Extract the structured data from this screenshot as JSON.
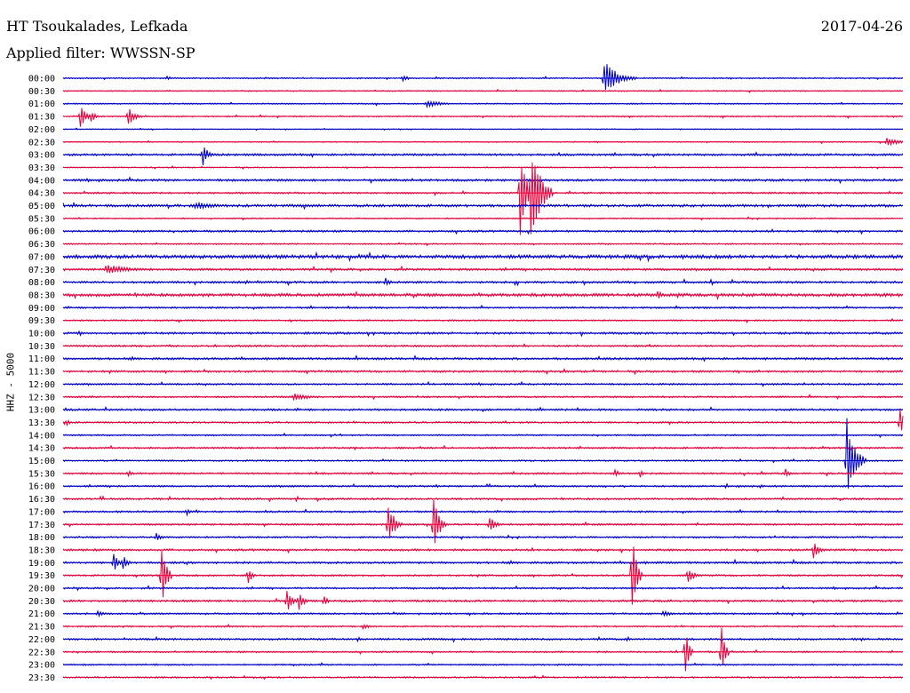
{
  "header": {
    "station_title": "HT Tsoukalades, Lefkada",
    "date": "2017-04-26",
    "filter_text": "Applied filter: WWSSN-SP"
  },
  "chart_data": {
    "type": "line",
    "title": "HT Tsoukalades, Lefkada",
    "ylabel": "HHZ - 5000",
    "row_labels": [
      "00:00",
      "00:30",
      "01:00",
      "01:30",
      "02:00",
      "02:30",
      "03:00",
      "03:30",
      "04:00",
      "04:30",
      "05:00",
      "05:30",
      "06:00",
      "06:30",
      "07:00",
      "07:30",
      "08:00",
      "08:30",
      "09:00",
      "09:30",
      "10:00",
      "10:30",
      "11:00",
      "11:30",
      "12:00",
      "12:30",
      "13:00",
      "13:30",
      "14:00",
      "14:30",
      "15:00",
      "15:30",
      "16:00",
      "16:30",
      "17:00",
      "17:30",
      "18:00",
      "18:30",
      "19:00",
      "19:30",
      "20:00",
      "20:30",
      "21:00",
      "21:30",
      "22:00",
      "22:30",
      "23:00",
      "23:30"
    ],
    "row_minutes": 30,
    "grid": false,
    "series_colors": [
      "#0000cc",
      "#e8003c"
    ],
    "row_noise": [
      0.6,
      0.5,
      0.6,
      0.6,
      0.4,
      0.5,
      1.0,
      0.5,
      1.0,
      0.8,
      1.2,
      0.6,
      0.9,
      0.6,
      1.6,
      1.0,
      1.0,
      1.4,
      0.8,
      0.7,
      1.0,
      0.8,
      1.0,
      0.9,
      0.8,
      0.8,
      0.9,
      0.8,
      0.7,
      0.8,
      0.7,
      0.8,
      0.8,
      0.9,
      0.8,
      0.8,
      0.8,
      0.9,
      1.0,
      0.8,
      0.8,
      0.9,
      0.8,
      0.7,
      0.9,
      0.7,
      0.7,
      0.7
    ],
    "events": [
      {
        "row": 0,
        "minute": 3.7,
        "amplitude": 3,
        "duration": 0.4
      },
      {
        "row": 0,
        "minute": 12.1,
        "amplitude": 5,
        "duration": 0.5
      },
      {
        "row": 0,
        "minute": 19.3,
        "amplitude": 22,
        "duration": 1.2
      },
      {
        "row": 2,
        "minute": 13.0,
        "amplitude": 5,
        "duration": 1.2
      },
      {
        "row": 3,
        "minute": 0.6,
        "amplitude": 14,
        "duration": 0.5
      },
      {
        "row": 3,
        "minute": 1.0,
        "amplitude": 9,
        "duration": 0.3
      },
      {
        "row": 3,
        "minute": 2.3,
        "amplitude": 14,
        "duration": 0.5
      },
      {
        "row": 5,
        "minute": 29.4,
        "amplitude": 5,
        "duration": 1.3
      },
      {
        "row": 6,
        "minute": 5.0,
        "amplitude": 14,
        "duration": 0.4
      },
      {
        "row": 9,
        "minute": 16.3,
        "amplitude": 58,
        "duration": 0.6
      },
      {
        "row": 9,
        "minute": 16.7,
        "amplitude": 70,
        "duration": 0.8
      },
      {
        "row": 10,
        "minute": 4.7,
        "amplitude": 4,
        "duration": 2.5
      },
      {
        "row": 15,
        "minute": 1.5,
        "amplitude": 6,
        "duration": 2.2
      },
      {
        "row": 16,
        "minute": 11.5,
        "amplitude": 6,
        "duration": 0.4
      },
      {
        "row": 17,
        "minute": 21.2,
        "amplitude": 6,
        "duration": 0.5
      },
      {
        "row": 25,
        "minute": 8.2,
        "amplitude": 5,
        "duration": 1.2
      },
      {
        "row": 27,
        "minute": 0.1,
        "amplitude": 6,
        "duration": 0.3
      },
      {
        "row": 27,
        "minute": 29.9,
        "amplitude": 18,
        "duration": 0.3
      },
      {
        "row": 30,
        "minute": 28.0,
        "amplitude": 48,
        "duration": 0.7
      },
      {
        "row": 31,
        "minute": 2.3,
        "amplitude": 5,
        "duration": 0.3
      },
      {
        "row": 31,
        "minute": 19.7,
        "amplitude": 5,
        "duration": 0.3
      },
      {
        "row": 31,
        "minute": 20.6,
        "amplitude": 5,
        "duration": 0.3
      },
      {
        "row": 31,
        "minute": 25.8,
        "amplitude": 7,
        "duration": 0.3
      },
      {
        "row": 32,
        "minute": 13.3,
        "amplitude": 3,
        "duration": 0.3
      },
      {
        "row": 34,
        "minute": 4.4,
        "amplitude": 6,
        "duration": 0.3
      },
      {
        "row": 35,
        "minute": 11.6,
        "amplitude": 30,
        "duration": 0.5
      },
      {
        "row": 35,
        "minute": 13.2,
        "amplitude": 40,
        "duration": 0.5
      },
      {
        "row": 35,
        "minute": 15.2,
        "amplitude": 12,
        "duration": 0.5
      },
      {
        "row": 36,
        "minute": 3.3,
        "amplitude": 6,
        "duration": 0.5
      },
      {
        "row": 37,
        "minute": 26.8,
        "amplitude": 10,
        "duration": 0.5
      },
      {
        "row": 38,
        "minute": 1.8,
        "amplitude": 12,
        "duration": 0.4
      },
      {
        "row": 38,
        "minute": 2.1,
        "amplitude": 12,
        "duration": 0.4
      },
      {
        "row": 39,
        "minute": 3.5,
        "amplitude": 45,
        "duration": 0.4
      },
      {
        "row": 39,
        "minute": 6.6,
        "amplitude": 12,
        "duration": 0.3
      },
      {
        "row": 39,
        "minute": 20.3,
        "amplitude": 60,
        "duration": 0.4
      },
      {
        "row": 39,
        "minute": 22.3,
        "amplitude": 12,
        "duration": 0.5
      },
      {
        "row": 41,
        "minute": 8.0,
        "amplitude": 14,
        "duration": 0.4
      },
      {
        "row": 41,
        "minute": 8.4,
        "amplitude": 14,
        "duration": 0.4
      },
      {
        "row": 41,
        "minute": 9.3,
        "amplitude": 9,
        "duration": 0.3
      },
      {
        "row": 42,
        "minute": 1.2,
        "amplitude": 4,
        "duration": 0.6
      },
      {
        "row": 42,
        "minute": 21.4,
        "amplitude": 4,
        "duration": 0.8
      },
      {
        "row": 43,
        "minute": 10.7,
        "amplitude": 3,
        "duration": 0.7
      },
      {
        "row": 44,
        "minute": 10.5,
        "amplitude": 4,
        "duration": 0.3
      },
      {
        "row": 44,
        "minute": 28.5,
        "amplitude": 3,
        "duration": 0.3
      },
      {
        "row": 45,
        "minute": 22.2,
        "amplitude": 48,
        "duration": 0.3
      },
      {
        "row": 45,
        "minute": 23.5,
        "amplitude": 42,
        "duration": 0.3
      }
    ]
  }
}
